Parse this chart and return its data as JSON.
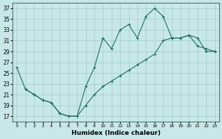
{
  "title": "",
  "xlabel": "Humidex (Indice chaleur)",
  "ylabel": "",
  "xlim": [
    -0.5,
    23.5
  ],
  "ylim": [
    16,
    38
  ],
  "yticks": [
    17,
    19,
    21,
    23,
    25,
    27,
    29,
    31,
    33,
    35,
    37
  ],
  "xticks": [
    0,
    1,
    2,
    3,
    4,
    5,
    6,
    7,
    8,
    9,
    10,
    11,
    12,
    13,
    14,
    15,
    16,
    17,
    18,
    19,
    20,
    21,
    22,
    23
  ],
  "bg_color": "#c8e8e8",
  "line_color": "#1a6b5a",
  "line1_x": [
    0,
    1,
    2,
    3,
    4,
    5,
    6,
    7,
    8,
    9,
    10,
    11,
    12,
    13,
    14,
    15,
    16,
    17,
    18,
    19,
    20,
    21,
    22,
    23
  ],
  "line1_y": [
    26,
    22,
    21,
    20,
    19.5,
    17.5,
    17,
    17,
    22.5,
    26,
    31.5,
    29.5,
    33,
    34,
    31.5,
    35.5,
    37,
    35.5,
    31.5,
    31.5,
    32,
    30,
    29.5,
    29
  ],
  "line2_x": [
    1,
    2,
    3,
    4,
    5,
    6,
    7,
    8,
    9,
    10,
    11,
    12,
    13,
    14,
    15,
    16,
    17,
    18,
    19,
    20,
    21,
    22,
    23
  ],
  "line2_y": [
    22,
    21,
    20,
    19.5,
    17.5,
    17,
    17,
    19,
    21,
    22.5,
    23.5,
    24.5,
    25.5,
    26.5,
    27.5,
    28.5,
    31,
    31.5,
    31.5,
    32,
    31.5,
    29,
    29
  ]
}
